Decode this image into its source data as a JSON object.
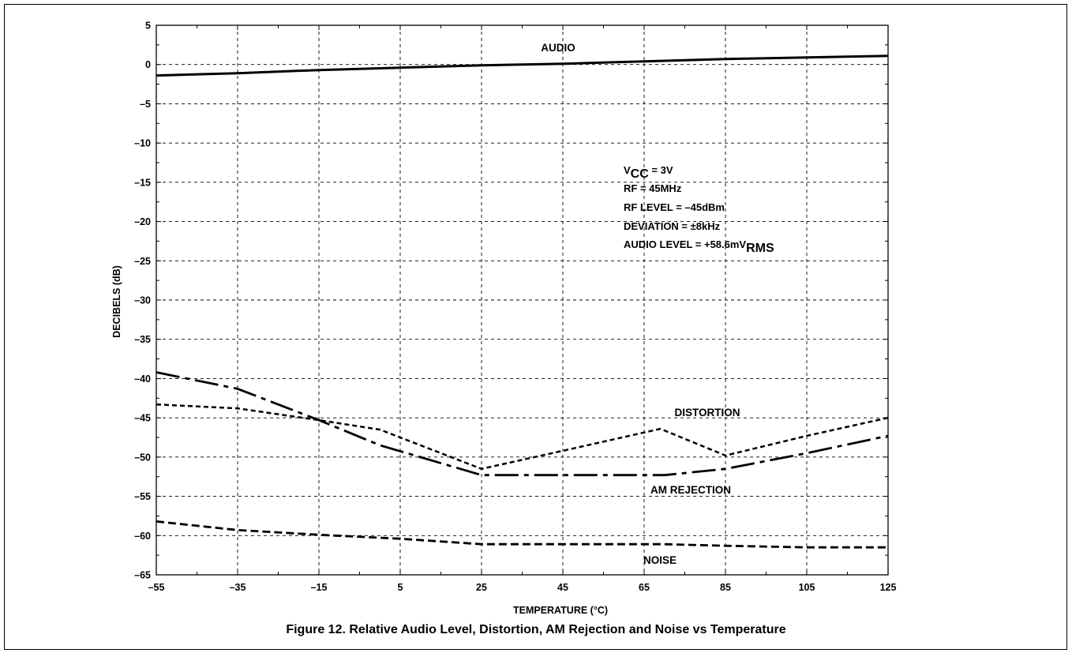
{
  "caption": "Figure 12.  Relative Audio Level, Distortion, AM Rejection and Noise vs Temperature",
  "conditions": {
    "vcc": {
      "main": "V",
      "sub": "CC",
      "rest": " = 3V"
    },
    "rf": "RF = 45MHz",
    "rf_level": "RF LEVEL = –45dBm",
    "deviation": "DEVIATION = ±8kHz",
    "audio_level": {
      "main": "AUDIO LEVEL = +58.6mV",
      "sub": "RMS"
    }
  },
  "chart_data": {
    "type": "line",
    "title": "",
    "xlabel": "TEMPERATURE (°C)",
    "ylabel": "DECIBELS (dB)",
    "xlim": [
      -55,
      125
    ],
    "ylim": [
      -65,
      5
    ],
    "x_ticks": [
      -55,
      -35,
      -15,
      5,
      25,
      45,
      65,
      85,
      105,
      125
    ],
    "y_ticks": [
      5,
      0,
      -5,
      -10,
      -15,
      -20,
      -25,
      -30,
      -35,
      -40,
      -45,
      -50,
      -55,
      -60,
      -65
    ],
    "x_tick_labels": [
      "–55",
      "–35",
      "–15",
      "5",
      "25",
      "45",
      "65",
      "85",
      "105",
      "125"
    ],
    "y_tick_labels": [
      "5",
      "0",
      "–5",
      "–10",
      "–15",
      "–20",
      "–25",
      "–30",
      "–35",
      "–40",
      "–45",
      "–50",
      "–55",
      "–60",
      "–65"
    ],
    "grid": true,
    "series": [
      {
        "name": "AUDIO",
        "style": "solid",
        "x": [
          -55,
          -35,
          -15,
          5,
          25,
          45,
          65,
          85,
          105,
          125
        ],
        "values": [
          -1.4,
          -1.1,
          -0.7,
          -0.4,
          -0.1,
          0.1,
          0.4,
          0.7,
          0.9,
          1.1
        ]
      },
      {
        "name": "DISTORTION",
        "style": "short-dash",
        "x": [
          -55,
          -35,
          -15,
          0,
          25,
          45,
          69,
          85,
          105,
          125
        ],
        "values": [
          -43.3,
          -43.8,
          -45.3,
          -46.5,
          -51.5,
          -49.2,
          -46.4,
          -49.8,
          -47.3,
          -45.0
        ]
      },
      {
        "name": "AM REJECTION",
        "style": "dash-dot",
        "x": [
          -55,
          -35,
          -15,
          0,
          25,
          45,
          70,
          85,
          105,
          125
        ],
        "values": [
          -39.2,
          -41.3,
          -45.3,
          -48.5,
          -52.3,
          -52.3,
          -52.3,
          -51.5,
          -49.5,
          -47.3
        ]
      },
      {
        "name": "NOISE",
        "style": "dash",
        "x": [
          -55,
          -35,
          -15,
          5,
          25,
          45,
          70,
          85,
          105,
          125
        ],
        "values": [
          -58.2,
          -59.3,
          -59.9,
          -60.4,
          -61.1,
          -61.1,
          -61.1,
          -61.3,
          -61.5,
          -61.5
        ]
      }
    ]
  }
}
